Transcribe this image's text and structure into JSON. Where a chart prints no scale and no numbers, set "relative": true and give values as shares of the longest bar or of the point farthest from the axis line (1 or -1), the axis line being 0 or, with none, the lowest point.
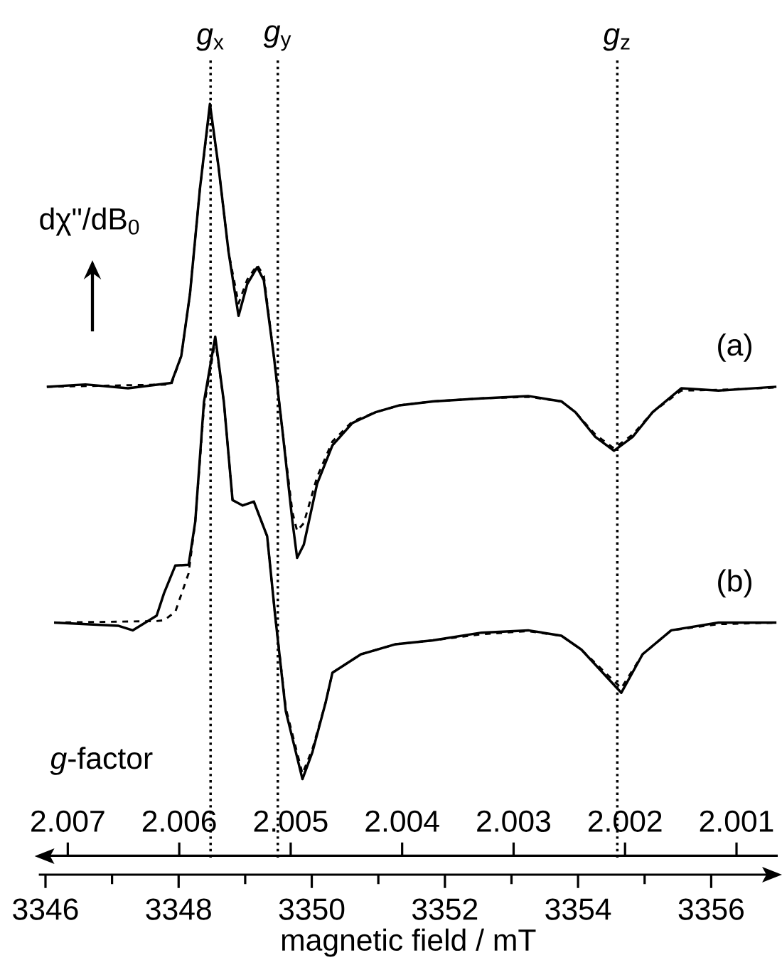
{
  "chart_data": {
    "type": "line",
    "relative": true,
    "marker": "none",
    "xlabel": "magnetic field / mT",
    "x2label": "*g*-factor",
    "ylabel": "dχ\"/dB$_{0}$",
    "xlim": [
      3345.9,
      3357.0
    ],
    "xticks": [
      3346,
      {
        "value": 3347,
        "label": null
      },
      3348,
      {
        "value": 3349,
        "label": null
      },
      3350,
      {
        "value": 3351,
        "label": null
      },
      3352,
      {
        "value": 3353,
        "label": null
      },
      3354,
      {
        "value": 3355,
        "label": null
      },
      3356
    ],
    "x2lim": [
      2.00726,
      2.00063
    ],
    "x2ticks": [
      2.007,
      2.006,
      2.005,
      2.004,
      2.003,
      2.002,
      2.001
    ],
    "ref_lines": [
      {
        "axis": "x",
        "value": 3348.48,
        "label": "*g*$_{x}$",
        "line_style": "dotted",
        "color": "#000000"
      },
      {
        "axis": "x",
        "value": 3349.49,
        "label": "*g*$_{y}$",
        "line_style": "dotted",
        "color": "#000000"
      },
      {
        "axis": "x",
        "value": 3354.59,
        "label": "*g*$_{z}$",
        "line_style": "dotted",
        "color": "#000000"
      }
    ],
    "series": [
      {
        "name": "(a)",
        "color": "#000000",
        "line_style": "solid",
        "x": [
          3346.02,
          3346.6,
          3347.24,
          3347.89,
          3348.04,
          3348.17,
          3348.32,
          3348.47,
          3348.6,
          3348.75,
          3348.9,
          3349.03,
          3349.18,
          3349.28,
          3349.43,
          3349.56,
          3349.71,
          3349.78,
          3349.88,
          3350.08,
          3350.31,
          3350.61,
          3350.96,
          3351.32,
          3351.82,
          3352.55,
          3353.25,
          3353.75,
          3353.96,
          3354.26,
          3354.54,
          3354.82,
          3355.12,
          3355.55,
          3356.11,
          3356.98
        ],
        "values": [
          0.633,
          0.636,
          0.631,
          0.638,
          0.673,
          0.753,
          0.89,
          1.0,
          0.918,
          0.808,
          0.725,
          0.766,
          0.788,
          0.771,
          0.673,
          0.576,
          0.458,
          0.411,
          0.428,
          0.507,
          0.557,
          0.586,
          0.6,
          0.609,
          0.614,
          0.618,
          0.621,
          0.614,
          0.6,
          0.568,
          0.55,
          0.568,
          0.6,
          0.631,
          0.628,
          0.633
        ]
      },
      {
        "color": "#000000",
        "line_style": "dashed",
        "x": [
          3346.02,
          3347.89,
          3348.04,
          3348.17,
          3348.32,
          3348.47,
          3348.6,
          3348.75,
          3348.9,
          3349.03,
          3349.18,
          3349.28,
          3349.43,
          3349.56,
          3349.71,
          3349.78,
          3349.88,
          3350.08,
          3350.31,
          3350.61,
          3350.96,
          3351.32,
          3351.82,
          3352.55,
          3353.25,
          3353.75,
          3353.96,
          3354.26,
          3354.54,
          3354.82,
          3355.12,
          3355.55,
          3356.11,
          3356.98
        ],
        "values": [
          0.633,
          0.636,
          0.673,
          0.753,
          0.89,
          0.996,
          0.918,
          0.808,
          0.741,
          0.772,
          0.791,
          0.777,
          0.673,
          0.576,
          0.47,
          0.446,
          0.456,
          0.516,
          0.562,
          0.588,
          0.6,
          0.609,
          0.614,
          0.618,
          0.62,
          0.614,
          0.6,
          0.571,
          0.553,
          0.571,
          0.6,
          0.628,
          0.629,
          0.632
        ]
      },
      {
        "name": "(b)",
        "color": "#000000",
        "line_style": "solid",
        "x": [
          3346.13,
          3347.09,
          3347.31,
          3347.67,
          3347.78,
          3347.95,
          3348.15,
          3348.25,
          3348.38,
          3348.55,
          3348.68,
          3348.81,
          3348.96,
          3349.13,
          3349.33,
          3349.45,
          3349.61,
          3349.86,
          3350.01,
          3350.21,
          3350.31,
          3350.74,
          3351.26,
          3351.82,
          3352.55,
          3353.25,
          3353.75,
          3354.05,
          3354.65,
          3354.97,
          3355.4,
          3356.11,
          3356.98
        ],
        "values": [
          0.327,
          0.323,
          0.317,
          0.336,
          0.365,
          0.401,
          0.402,
          0.458,
          0.613,
          0.698,
          0.613,
          0.486,
          0.479,
          0.484,
          0.439,
          0.336,
          0.212,
          0.124,
          0.159,
          0.224,
          0.262,
          0.286,
          0.299,
          0.304,
          0.314,
          0.317,
          0.31,
          0.292,
          0.236,
          0.286,
          0.317,
          0.327,
          0.327
        ]
      },
      {
        "color": "#000000",
        "line_style": "dashed",
        "x": [
          3346.13,
          3347.67,
          3347.78,
          3347.95,
          3348.15,
          3348.25,
          3348.38,
          3348.55,
          3348.68,
          3348.81,
          3348.96,
          3349.13,
          3349.33,
          3349.45,
          3349.61,
          3349.86,
          3350.01,
          3350.21,
          3350.31,
          3350.74,
          3351.26,
          3351.82,
          3352.55,
          3353.25,
          3353.75,
          3354.05,
          3354.65,
          3354.97,
          3355.4,
          3356.11,
          3356.98
        ],
        "values": [
          0.327,
          0.329,
          0.33,
          0.341,
          0.391,
          0.458,
          0.606,
          0.693,
          0.613,
          0.486,
          0.479,
          0.484,
          0.439,
          0.336,
          0.216,
          0.131,
          0.163,
          0.224,
          0.262,
          0.286,
          0.299,
          0.304,
          0.312,
          0.316,
          0.31,
          0.292,
          0.242,
          0.286,
          0.317,
          0.325,
          0.327
        ]
      }
    ]
  }
}
